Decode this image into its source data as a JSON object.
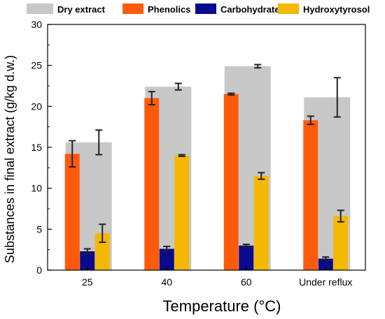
{
  "chart_data": {
    "type": "bar",
    "xlabel": "Temperature (°C)",
    "ylabel": "Substances in final extract (g/kg d.w.)",
    "ylim": [
      0,
      30
    ],
    "yticks": [
      0,
      5,
      10,
      15,
      20,
      25,
      30
    ],
    "categories": [
      "25",
      "40",
      "60",
      "Under reflux"
    ],
    "legend_position": "top",
    "grid": false,
    "background_series": {
      "name": "Dry extract",
      "color": "#c8c8c8",
      "values": [
        15.6,
        22.4,
        24.9,
        21.1
      ],
      "errors": [
        1.5,
        0.4,
        0.2,
        2.4
      ]
    },
    "series": [
      {
        "name": "Phenolics",
        "color": "#ff5a0a",
        "values": [
          14.2,
          21.0,
          21.5,
          18.3
        ],
        "errors": [
          1.6,
          0.8,
          0.1,
          0.5
        ]
      },
      {
        "name": "Carbohydrates",
        "color": "#0a0a8c",
        "values": [
          2.3,
          2.6,
          3.0,
          1.4
        ],
        "errors": [
          0.3,
          0.3,
          0.15,
          0.2
        ]
      },
      {
        "name": "Hydroxytyrosol",
        "color": "#f5b800",
        "values": [
          4.5,
          14.0,
          11.5,
          6.6
        ],
        "errors": [
          1.1,
          0.1,
          0.4,
          0.7
        ]
      }
    ]
  }
}
